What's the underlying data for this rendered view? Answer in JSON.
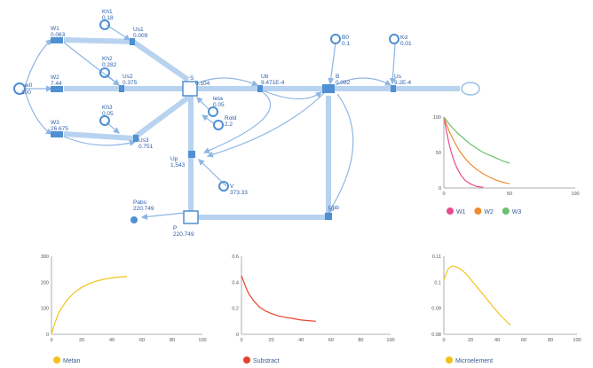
{
  "diagram": {
    "colors": {
      "flow": "#b7d3ef",
      "node": "#4f8fd2",
      "text": "#2a5da8"
    },
    "nodes": {
      "w0": {
        "name": "w0",
        "value": "100"
      },
      "W1": {
        "name": "W1",
        "value": "0.063"
      },
      "W2": {
        "name": "W2",
        "value": "7.44"
      },
      "W3": {
        "name": "W3",
        "value": "26.675"
      },
      "Kh1": {
        "name": "Kh1",
        "value": "0.18"
      },
      "Kh2": {
        "name": "Kh2",
        "value": "0.282"
      },
      "Kh3": {
        "name": "Kh3",
        "value": "0.05"
      },
      "Us1": {
        "name": "Us1",
        "value": "0.009"
      },
      "Us2": {
        "name": "Us2",
        "value": "0.375"
      },
      "Us3": {
        "name": "Us3",
        "value": "0.751"
      },
      "S": {
        "name": "S",
        "value": "0.104"
      },
      "Ub": {
        "name": "Ub",
        "value": "9.471E-4"
      },
      "B": {
        "name": "B",
        "value": "0.092"
      },
      "B0": {
        "name": "B0",
        "value": "0.1"
      },
      "Kd": {
        "name": "Kd",
        "value": "0.01"
      },
      "Us": {
        "name": "Us",
        "value": "9.2E-4"
      },
      "teta": {
        "name": "teta",
        "value": "0.05"
      },
      "Rold": {
        "name": "Rold",
        "value": "2.2"
      },
      "Up": {
        "name": "Up",
        "value": "1.543"
      },
      "V": {
        "name": "V",
        "value": "373.33"
      },
      "Upb": {
        "name": "Upb",
        "value": ""
      },
      "Pabs": {
        "name": "Pabs",
        "value": "220.749"
      },
      "P": {
        "name": "P",
        "value": "220.749"
      }
    }
  },
  "chart_data": [
    {
      "type": "line",
      "xlim": [
        0,
        100
      ],
      "ylim": [
        0,
        100
      ],
      "xticks": [
        "0",
        "50",
        "100"
      ],
      "yticks": [
        "0",
        "50",
        "100"
      ],
      "series": [
        {
          "name": "W1",
          "color": "#e94a8f",
          "x": [
            0,
            2,
            4,
            6,
            8,
            10,
            13,
            16,
            20,
            25,
            30
          ],
          "y": [
            100,
            80,
            62,
            48,
            37,
            28,
            18,
            11,
            6,
            2,
            1
          ]
        },
        {
          "name": "W2",
          "color": "#f08a2e",
          "x": [
            0,
            4,
            8,
            12,
            16,
            20,
            25,
            30,
            35,
            40,
            45,
            50
          ],
          "y": [
            100,
            80,
            65,
            52,
            42,
            34,
            26,
            20,
            15,
            11,
            8,
            6
          ]
        },
        {
          "name": "W3",
          "color": "#6cc06c",
          "x": [
            0,
            5,
            10,
            15,
            20,
            25,
            30,
            35,
            40,
            45,
            50
          ],
          "y": [
            100,
            88,
            78,
            70,
            62,
            56,
            50,
            46,
            42,
            38,
            35
          ]
        }
      ]
    },
    {
      "type": "line",
      "xlim": [
        0,
        100
      ],
      "ylim": [
        0,
        300
      ],
      "xticks": [
        "0",
        "20",
        "40",
        "60",
        "80",
        "100"
      ],
      "yticks": [
        "0",
        "100",
        "200",
        "300"
      ],
      "series": [
        {
          "name": "Metan",
          "color": "#f2c21b",
          "x": [
            0,
            2,
            5,
            10,
            15,
            20,
            25,
            30,
            35,
            40,
            45,
            50
          ],
          "y": [
            0,
            40,
            85,
            130,
            160,
            180,
            195,
            205,
            212,
            217,
            220,
            222
          ]
        }
      ]
    },
    {
      "type": "line",
      "xlim": [
        0,
        100
      ],
      "ylim": [
        0,
        0.6
      ],
      "xticks": [
        "0",
        "20",
        "40",
        "60",
        "80",
        "100"
      ],
      "yticks": [
        "0",
        "0.2",
        "0.4",
        "0.6"
      ],
      "series": [
        {
          "name": "Substract",
          "color": "#e8412b",
          "x": [
            0,
            1,
            3,
            5,
            8,
            12,
            16,
            20,
            25,
            30,
            35,
            40,
            45,
            50
          ],
          "y": [
            0.45,
            0.42,
            0.36,
            0.31,
            0.26,
            0.21,
            0.18,
            0.16,
            0.14,
            0.13,
            0.12,
            0.11,
            0.105,
            0.1
          ]
        }
      ]
    },
    {
      "type": "line",
      "xlim": [
        0,
        100
      ],
      "ylim": [
        0.08,
        0.11
      ],
      "xticks": [
        "0",
        "20",
        "40",
        "60",
        "80",
        "100"
      ],
      "yticks": [
        "0.08",
        "0.09",
        "0.1",
        "0.11"
      ],
      "series": [
        {
          "name": "Microelement",
          "color": "#f2c21b",
          "x": [
            0,
            3,
            6,
            10,
            14,
            18,
            22,
            26,
            30,
            34,
            38,
            42,
            46,
            50
          ],
          "y": [
            0.101,
            0.105,
            0.1063,
            0.1058,
            0.1045,
            0.1025,
            0.1,
            0.0975,
            0.095,
            0.0925,
            0.09,
            0.0875,
            0.0855,
            0.0835
          ]
        }
      ]
    }
  ]
}
